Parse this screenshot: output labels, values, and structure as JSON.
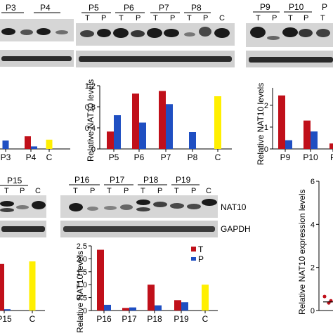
{
  "colors": {
    "T": "#c0101a",
    "P": "#1f4fc2",
    "C": "#ffef00",
    "blot_bg": "#d9d9d9",
    "axis": "#000000"
  },
  "ylabel": "Relative NAT10 levels",
  "ylabel_right": "Relative NAT10 expression levels",
  "legend": {
    "T": "T",
    "P": "P"
  },
  "row_labels": {
    "nat10": "NAT10",
    "gapdh": "GAPDH"
  },
  "lane_labels": {
    "T": "T",
    "P": "P",
    "C": "C"
  },
  "blot_groups": {
    "A": [
      "P3",
      "P4"
    ],
    "B": [
      "P5",
      "P6",
      "P7",
      "P8"
    ],
    "C": [
      "P9",
      "P10"
    ],
    "D": [
      "P15"
    ],
    "E": [
      "P16",
      "P17",
      "P18",
      "P19"
    ]
  },
  "chart_data": [
    {
      "type": "bar",
      "id": "panel-a",
      "categories": [
        "P3",
        "P4",
        "C"
      ],
      "series": [
        {
          "name": "T",
          "values": [
            null,
            0.3,
            null
          ]
        },
        {
          "name": "P",
          "values": [
            0.2,
            0.06,
            null
          ]
        },
        {
          "name": "C",
          "values": [
            null,
            null,
            0.22
          ]
        }
      ],
      "ylim": [
        0,
        1.2
      ]
    },
    {
      "type": "bar",
      "id": "panel-b",
      "categories": [
        "P5",
        "P6",
        "P7",
        "P8",
        "C"
      ],
      "series": [
        {
          "name": "T",
          "values": [
            0.33,
            1.05,
            1.1,
            null,
            null
          ]
        },
        {
          "name": "P",
          "values": [
            0.64,
            0.5,
            0.85,
            0.32,
            null
          ]
        },
        {
          "name": "C",
          "values": [
            null,
            null,
            null,
            null,
            1.0
          ]
        }
      ],
      "yticks": [
        "0",
        "0.4",
        "0.8",
        "1.2"
      ],
      "ylim": [
        0,
        1.2
      ]
    },
    {
      "type": "bar",
      "id": "panel-c",
      "categories": [
        "P9",
        "P10",
        "P"
      ],
      "series": [
        {
          "name": "T",
          "values": [
            2.45,
            1.3,
            0.25
          ]
        },
        {
          "name": "P",
          "values": [
            0.4,
            0.8,
            null
          ]
        }
      ],
      "yticks": [
        "0",
        "1",
        "2"
      ],
      "ylim": [
        0,
        2.8
      ]
    },
    {
      "type": "bar",
      "id": "panel-d",
      "categories": [
        "P15",
        "C"
      ],
      "series": [
        {
          "name": "T",
          "values": [
            1.8,
            null
          ]
        },
        {
          "name": "P",
          "values": [
            0.05,
            null
          ]
        },
        {
          "name": "C",
          "values": [
            null,
            1.9
          ]
        }
      ],
      "ylim": [
        0,
        2.5
      ]
    },
    {
      "type": "bar",
      "id": "panel-e",
      "categories": [
        "P16",
        "P17",
        "P18",
        "P19",
        "C"
      ],
      "series": [
        {
          "name": "T",
          "values": [
            2.35,
            0.1,
            1.0,
            0.4,
            null
          ]
        },
        {
          "name": "P",
          "values": [
            0.22,
            0.12,
            0.2,
            0.32,
            null
          ]
        },
        {
          "name": "C",
          "values": [
            null,
            null,
            null,
            null,
            1.0
          ]
        }
      ],
      "yticks": [
        "0",
        "0.5",
        "1.0",
        "1.5",
        "2.0",
        "2.5"
      ],
      "ylim": [
        0,
        2.5
      ]
    },
    {
      "type": "scatter",
      "id": "panel-f",
      "yticks": [
        "0",
        "2",
        "4",
        "6"
      ],
      "ylim": [
        0,
        6
      ],
      "points": [
        0.35,
        0.65,
        0.45
      ],
      "median": 0.4
    }
  ]
}
